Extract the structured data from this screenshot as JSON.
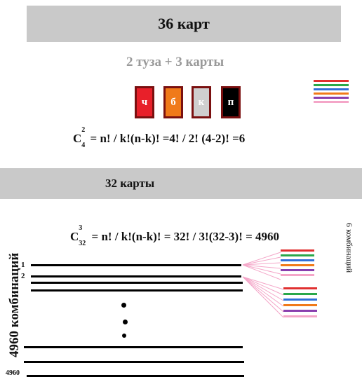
{
  "top_bar": {
    "title": "36 карт"
  },
  "subtitle": {
    "text": "2 туза + 3 карты"
  },
  "suits": [
    {
      "label": "ч",
      "color": "#e8202a"
    },
    {
      "label": "б",
      "color": "#f07a1a"
    },
    {
      "label": "к",
      "color": "#cfcfcf"
    },
    {
      "label": "п",
      "color": "#000000"
    }
  ],
  "formula1": {
    "c": "C",
    "sup": "2",
    "sub": "4",
    "rest": "= n! / k!(n-k)! =4! / 2! (4-2)! =6"
  },
  "mid_bar": {
    "title": "32 карты"
  },
  "formula2": {
    "c": "C",
    "sup": "3",
    "sub": "32",
    "rest": "= n! / k!(n-k)! =  32! / 3!(32-3)! = 4960"
  },
  "left_label": {
    "text": "4960 комбинаций"
  },
  "right_label": {
    "text": "6 комбинаций"
  },
  "row_numbers": {
    "first": "1",
    "second": "2",
    "last": "4960"
  },
  "stripe_colors": [
    "#e03030",
    "#2aa84a",
    "#2f6fd8",
    "#f07a1a",
    "#8a3fae",
    "#f4a6c8"
  ]
}
